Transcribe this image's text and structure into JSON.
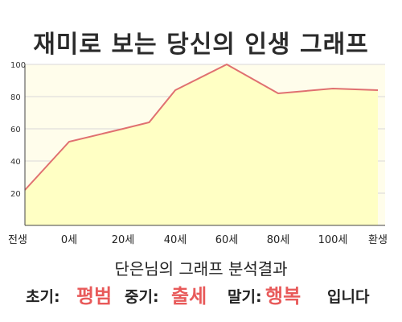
{
  "title": "재미로 보는 당신의 인생 그래프",
  "chart_data": {
    "type": "area",
    "x_categories": [
      "전생",
      "0세",
      "20세",
      "40세",
      "60세",
      "80세",
      "100세",
      "환생"
    ],
    "points": [
      {
        "x": "전생",
        "y": 22
      },
      {
        "x": "0세",
        "y": 52
      },
      {
        "x": "20세",
        "y": 60
      },
      {
        "x": "30세",
        "y": 64
      },
      {
        "x": "40세",
        "y": 84
      },
      {
        "x": "60세",
        "y": 100
      },
      {
        "x": "70세",
        "y": 91
      },
      {
        "x": "80세",
        "y": 82
      },
      {
        "x": "100세",
        "y": 85
      },
      {
        "x": "환생",
        "y": 84
      }
    ],
    "y_ticks": [
      20,
      40,
      60,
      80,
      100
    ],
    "ylim": [
      0,
      100
    ],
    "grid": true,
    "colors": {
      "fill": "#ffffc4",
      "line": "#e07070",
      "plot_bg": "#fffdeb",
      "grid": "#d8d8d8"
    }
  },
  "result": {
    "title": "단은님의 그래프 분석결과",
    "early_label": "초기:",
    "early_value": "평범",
    "middle_label": "중기:",
    "middle_value": "출세",
    "late_label": "말기:",
    "late_value": "행복",
    "suffix": "입니다"
  }
}
